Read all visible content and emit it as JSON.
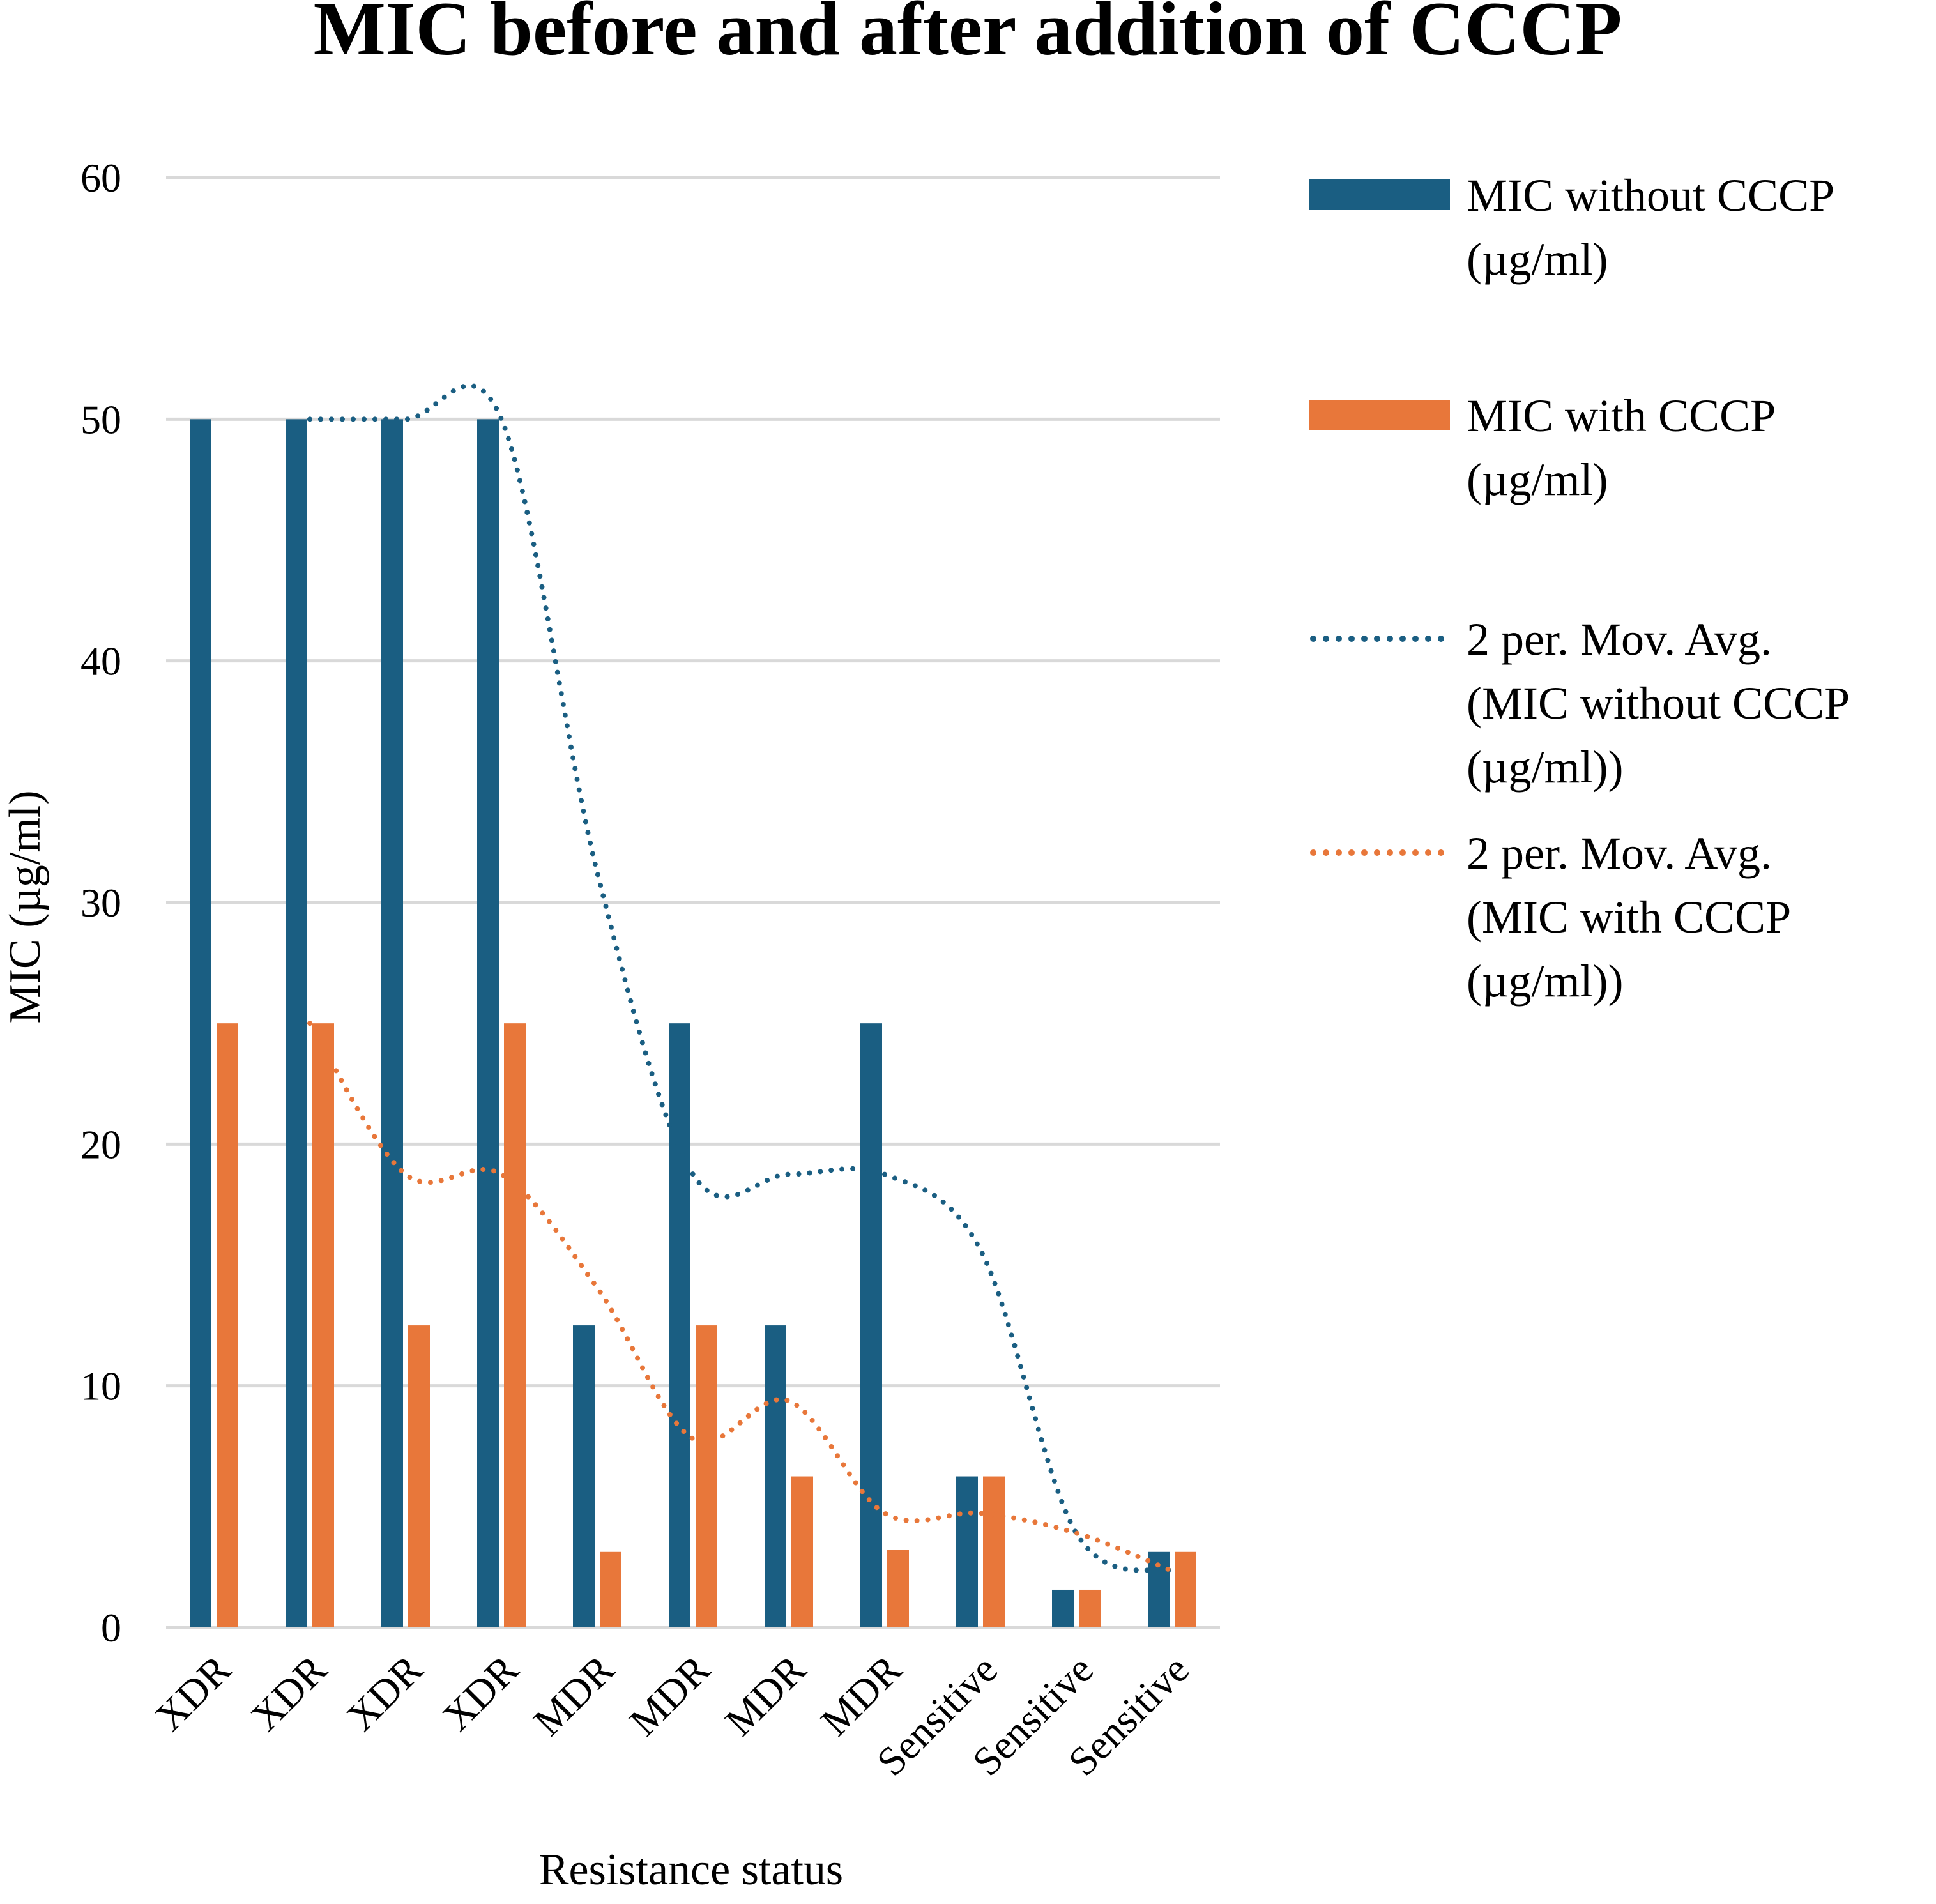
{
  "chart_data": {
    "type": "bar",
    "title": "MIC before and after addition of CCCP",
    "xlabel": "Resistance status",
    "ylabel": "MIC (µg/ml)",
    "ylim": [
      0,
      60
    ],
    "yticks": [
      0,
      10,
      20,
      30,
      40,
      50,
      60
    ],
    "grid": true,
    "legend_position": "right",
    "categories": [
      "XDR",
      "XDR",
      "XDR",
      "XDR",
      "MDR",
      "MDR",
      "MDR",
      "MDR",
      "Sensitive",
      "Sensitive",
      "Sensitive"
    ],
    "series": [
      {
        "name": "MIC without CCCP (µg/ml)",
        "kind": "bar",
        "color": "#1a5e82",
        "values": [
          50,
          50,
          50,
          50,
          12.5,
          25,
          12.5,
          25,
          6.25,
          1.56,
          3.125
        ]
      },
      {
        "name": "MIC with CCCP (µg/ml)",
        "kind": "bar",
        "color": "#e8773a",
        "values": [
          25,
          25,
          12.5,
          25,
          3.125,
          12.5,
          6.25,
          3.2,
          6.25,
          1.56,
          3.125
        ]
      }
    ],
    "trendlines": [
      {
        "name": "2 per. Mov. Avg. (MIC without CCCP (µg/ml))",
        "kind": "dotted-line",
        "color": "#1a5e82",
        "values": [
          null,
          50,
          50,
          50,
          31.25,
          18.75,
          18.75,
          18.75,
          15.625,
          3.905,
          2.34
        ]
      },
      {
        "name": "2 per. Mov. Avg. (MIC with CCCP (µg/ml))",
        "kind": "dotted-line",
        "color": "#e8773a",
        "values": [
          null,
          25,
          18.75,
          18.75,
          14.06,
          7.81,
          9.375,
          4.725,
          4.725,
          3.905,
          2.34
        ]
      }
    ],
    "legend": [
      {
        "lines": [
          "MIC without CCCP",
          "(µg/ml)"
        ],
        "kind": "bar",
        "color": "#1a5e82"
      },
      {
        "lines": [
          "MIC with CCCP",
          "(µg/ml)"
        ],
        "kind": "bar",
        "color": "#e8773a"
      },
      {
        "lines": [
          "2 per. Mov. Avg.",
          "(MIC without CCCP",
          "(µg/ml))"
        ],
        "kind": "dotted-line",
        "color": "#1a5e82"
      },
      {
        "lines": [
          "2 per. Mov. Avg.",
          "(MIC with CCCP",
          "(µg/ml))"
        ],
        "kind": "dotted-line",
        "color": "#e8773a"
      }
    ]
  }
}
